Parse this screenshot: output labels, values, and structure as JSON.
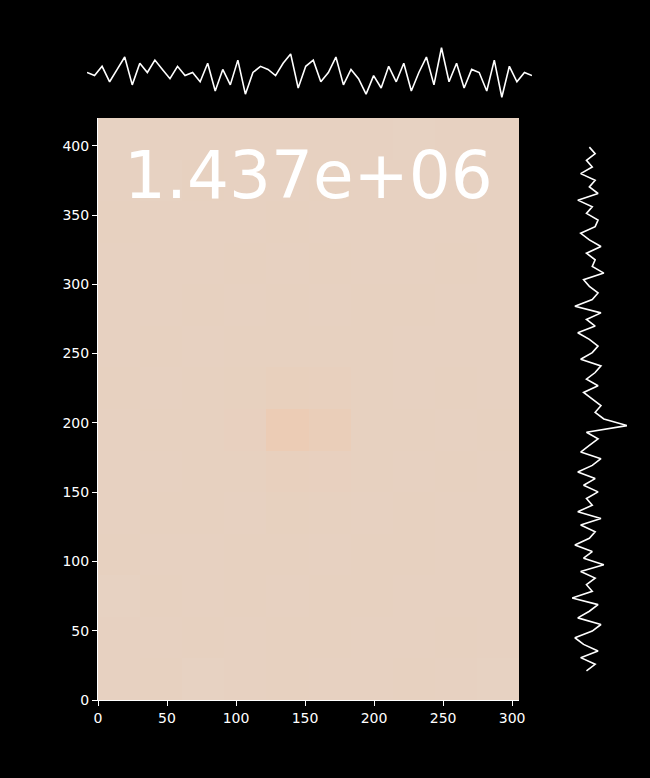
{
  "chart_data": {
    "type": "heatmap",
    "annotations": [
      "1.437e+06"
    ],
    "xlim": [
      0,
      305
    ],
    "ylim": [
      0,
      420
    ],
    "xticks": [
      0,
      50,
      100,
      150,
      200,
      250,
      300
    ],
    "yticks": [
      0,
      50,
      100,
      150,
      200,
      250,
      300,
      350,
      400
    ],
    "x_edges": [
      0,
      30.5,
      61,
      91.5,
      122,
      152.5,
      183,
      213.5,
      244,
      274.5,
      305
    ],
    "y_edges": [
      0,
      30,
      60,
      90,
      120,
      150,
      180,
      210,
      240,
      270,
      300,
      330,
      360,
      390,
      420
    ],
    "zlim": [
      0,
      1
    ],
    "cells": [
      [
        0.085,
        0.088,
        0.084,
        0.087,
        0.089,
        0.086,
        0.085,
        0.088,
        0.087,
        0.084
      ],
      [
        0.087,
        0.085,
        0.089,
        0.086,
        0.088,
        0.09,
        0.086,
        0.085,
        0.088,
        0.086
      ],
      [
        0.084,
        0.088,
        0.086,
        0.089,
        0.087,
        0.088,
        0.089,
        0.086,
        0.085,
        0.087
      ],
      [
        0.088,
        0.086,
        0.087,
        0.088,
        0.09,
        0.087,
        0.088,
        0.089,
        0.086,
        0.085
      ],
      [
        0.086,
        0.089,
        0.088,
        0.087,
        0.091,
        0.09,
        0.087,
        0.088,
        0.087,
        0.086
      ],
      [
        0.087,
        0.087,
        0.089,
        0.09,
        0.095,
        0.093,
        0.089,
        0.087,
        0.088,
        0.087
      ],
      [
        0.085,
        0.088,
        0.09,
        0.093,
        0.125,
        0.11,
        0.09,
        0.088,
        0.086,
        0.088
      ],
      [
        0.088,
        0.086,
        0.089,
        0.091,
        0.098,
        0.095,
        0.089,
        0.087,
        0.088,
        0.086
      ],
      [
        0.086,
        0.088,
        0.087,
        0.089,
        0.09,
        0.089,
        0.088,
        0.086,
        0.087,
        0.087
      ],
      [
        0.087,
        0.085,
        0.088,
        0.087,
        0.088,
        0.087,
        0.089,
        0.088,
        0.085,
        0.086
      ],
      [
        0.085,
        0.087,
        0.086,
        0.088,
        0.087,
        0.088,
        0.086,
        0.087,
        0.088,
        0.085
      ],
      [
        0.088,
        0.086,
        0.087,
        0.086,
        0.089,
        0.086,
        0.087,
        0.085,
        0.086,
        0.087
      ],
      [
        0.086,
        0.084,
        0.088,
        0.087,
        0.086,
        0.088,
        0.085,
        0.087,
        0.085,
        0.086
      ],
      [
        0.084,
        0.087,
        0.085,
        0.086,
        0.087,
        0.085,
        0.086,
        0.084,
        0.086,
        0.085
      ]
    ],
    "top_profile": [
      0.1,
      0.0,
      0.3,
      -0.2,
      0.2,
      0.6,
      -0.3,
      0.4,
      0.1,
      0.5,
      0.2,
      -0.1,
      0.3,
      0.0,
      0.1,
      -0.2,
      0.4,
      -0.5,
      0.2,
      -0.3,
      0.5,
      -0.6,
      0.1,
      0.3,
      0.2,
      0.0,
      0.4,
      0.7,
      -0.4,
      0.3,
      0.5,
      -0.2,
      0.1,
      0.6,
      -0.3,
      0.2,
      -0.1,
      -0.6,
      0.0,
      -0.4,
      0.3,
      -0.2,
      0.4,
      -0.5,
      0.1,
      0.6,
      -0.3,
      0.9,
      -0.2,
      0.4,
      -0.4,
      0.2,
      0.1,
      -0.5,
      0.5,
      -0.7,
      0.3,
      -0.2,
      0.1,
      0.0
    ],
    "right_profile": [
      0.0,
      0.3,
      -0.2,
      0.4,
      -0.1,
      -0.4,
      0.2,
      0.5,
      -0.3,
      0.1,
      0.4,
      -0.5,
      0.2,
      0.0,
      0.3,
      -0.2,
      0.6,
      -0.1,
      0.2,
      -0.4,
      0.1,
      0.3,
      -0.2,
      0.5,
      -0.3,
      0.2,
      0.0,
      0.4,
      -0.1,
      0.3,
      -0.3,
      0.2,
      0.5,
      -0.2,
      0.1,
      0.4,
      0.0,
      1.4,
      0.6,
      0.3,
      0.5,
      0.2,
      -0.1,
      0.4,
      0.0,
      0.3,
      0.5,
      -0.2,
      0.2,
      0.4,
      0.1,
      -0.3,
      0.3,
      0.0,
      0.5,
      -0.4,
      0.2,
      0.4,
      0.1,
      -0.1,
      0.6,
      0.2,
      0.3,
      0.0,
      0.5,
      0.1,
      -0.2,
      0.3,
      0.4,
      0.0,
      0.2,
      -0.3,
      0.4,
      0.1,
      0.3,
      -0.2,
      0.2,
      0.0,
      0.3,
      0.1
    ]
  }
}
